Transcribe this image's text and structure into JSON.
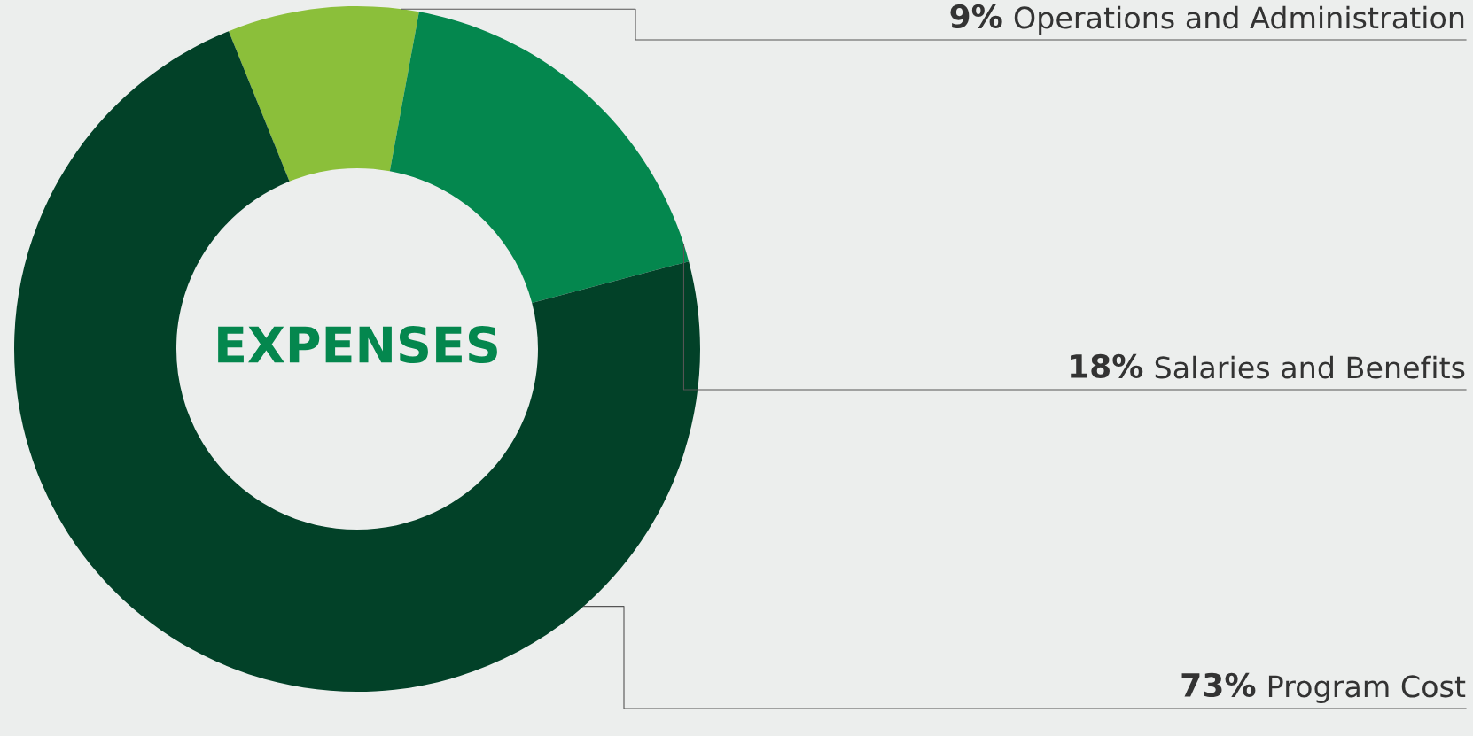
{
  "chart_data": {
    "type": "donut",
    "title": "EXPENSES",
    "categories": [
      "Operations and Administration",
      "Salaries and Benefits",
      "Program Cost"
    ],
    "values": [
      9,
      18,
      73
    ],
    "colors": [
      "#8bbf3a",
      "#04874e",
      "#024128"
    ],
    "value_labels": [
      "9%",
      "18%",
      "73%"
    ]
  }
}
